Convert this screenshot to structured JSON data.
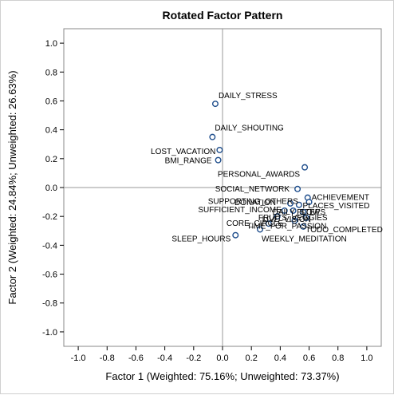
{
  "chart_data": {
    "type": "scatter",
    "title": "Rotated Factor Pattern",
    "xlabel": "Factor 1 (Weighted: 75.16%; Unweighted: 73.37%)",
    "ylabel": "Factor 2 (Weighted: 24.84%; Unweighted: 26.63%)",
    "xlim": [
      -1.1,
      1.1
    ],
    "ylim": [
      -1.1,
      1.1
    ],
    "xticks": [
      "-1.0",
      "-0.8",
      "-0.6",
      "-0.4",
      "-0.2",
      "0.0",
      "0.2",
      "0.4",
      "0.6",
      "0.8",
      "1.0"
    ],
    "yticks": [
      "-1.0",
      "-0.8",
      "-0.6",
      "-0.4",
      "-0.2",
      "0.0",
      "0.2",
      "0.4",
      "0.6",
      "0.8",
      "1.0"
    ],
    "reference_lines": {
      "x": 0,
      "y": 0
    },
    "points": [
      {
        "label": "DAILY_STRESS",
        "x": -0.05,
        "y": 0.58
      },
      {
        "label": "DAILY_SHOUTING",
        "x": -0.07,
        "y": 0.35
      },
      {
        "label": "LOST_VACATION",
        "x": -0.02,
        "y": 0.26
      },
      {
        "label": "BMI_RANGE",
        "x": -0.03,
        "y": 0.19
      },
      {
        "label": "PERSONAL_AWARDS",
        "x": 0.57,
        "y": 0.14
      },
      {
        "label": "SOCIAL_NETWORK",
        "x": 0.52,
        "y": -0.01
      },
      {
        "label": "ACHIEVEMENT",
        "x": 0.59,
        "y": -0.07
      },
      {
        "label": "DONATION",
        "x": 0.47,
        "y": -0.11
      },
      {
        "label": "SUPPORTING_OTHERS",
        "x": 0.53,
        "y": -0.12
      },
      {
        "label": "PLACES_VISITED",
        "x": 0.6,
        "y": -0.1
      },
      {
        "label": "SUFFICIENT_INCOME",
        "x": 0.43,
        "y": -0.16
      },
      {
        "label": "DAILY_STEPS",
        "x": 0.49,
        "y": -0.16
      },
      {
        "label": "FLOW",
        "x": 0.56,
        "y": -0.17
      },
      {
        "label": "LIVE_VISION",
        "x": 0.38,
        "y": -0.2
      },
      {
        "label": "FRUITS_VEGGIES",
        "x": 0.58,
        "y": -0.21
      },
      {
        "label": "CORE_CIRCLE",
        "x": 0.32,
        "y": -0.25
      },
      {
        "label": "TIME_FOR_PASSION",
        "x": 0.5,
        "y": -0.23
      },
      {
        "label": "TODO_COMPLETED",
        "x": 0.56,
        "y": -0.27
      },
      {
        "label": "WEEKLY_MEDITATION",
        "x": 0.26,
        "y": -0.29
      },
      {
        "label": "SLEEP_HOURS",
        "x": 0.09,
        "y": -0.33
      }
    ]
  }
}
